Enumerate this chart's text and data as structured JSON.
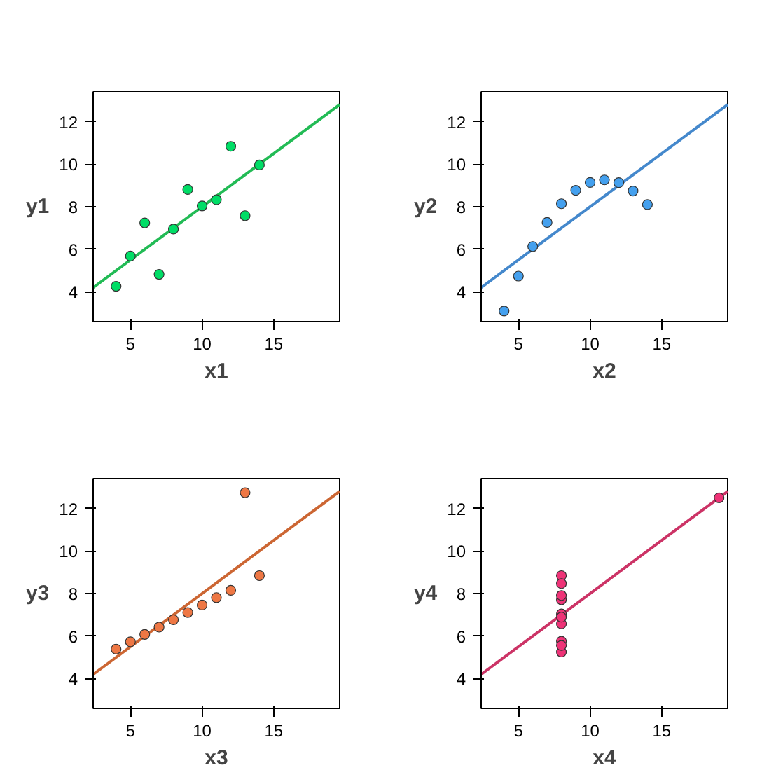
{
  "chart_data": [
    {
      "type": "scatter",
      "xlabel": "x1",
      "ylabel": "y1",
      "xlim": [
        2.4,
        19.6
      ],
      "ylim": [
        2.6,
        13.4
      ],
      "xticks": [
        5,
        10,
        15
      ],
      "yticks": [
        4,
        6,
        8,
        10,
        12
      ],
      "grid": false,
      "x": [
        10,
        8,
        13,
        9,
        11,
        14,
        6,
        4,
        12,
        7,
        5
      ],
      "series": [
        {
          "color": "#00dd66",
          "marker": "circle",
          "values": [
            8.04,
            6.95,
            7.58,
            8.81,
            8.33,
            9.96,
            7.24,
            4.26,
            10.84,
            4.82,
            5.68
          ]
        },
        {
          "type": "line",
          "color": "#22bb55",
          "x": [
            2.4,
            11,
            19.6
          ],
          "values": [
            4.2,
            8.5,
            12.8
          ]
        }
      ]
    },
    {
      "type": "scatter",
      "xlabel": "x2",
      "ylabel": "y2",
      "xlim": [
        2.4,
        19.6
      ],
      "ylim": [
        2.6,
        13.4
      ],
      "xticks": [
        5,
        10,
        15
      ],
      "yticks": [
        4,
        6,
        8,
        10,
        12
      ],
      "grid": false,
      "x": [
        10,
        8,
        13,
        9,
        11,
        14,
        6,
        4,
        12,
        7,
        5
      ],
      "series": [
        {
          "color": "#44a0ee",
          "marker": "circle",
          "values": [
            9.14,
            8.14,
            8.74,
            8.77,
            9.26,
            8.1,
            6.13,
            3.1,
            9.13,
            7.26,
            4.74
          ]
        },
        {
          "type": "line",
          "color": "#4488cc",
          "x": [
            2.4,
            11,
            19.6
          ],
          "values": [
            4.2,
            8.5,
            12.8
          ]
        }
      ]
    },
    {
      "type": "scatter",
      "xlabel": "x3",
      "ylabel": "y3",
      "xlim": [
        2.4,
        19.6
      ],
      "ylim": [
        2.6,
        13.4
      ],
      "xticks": [
        5,
        10,
        15
      ],
      "yticks": [
        4,
        6,
        8,
        10,
        12
      ],
      "grid": false,
      "x": [
        10,
        8,
        13,
        9,
        11,
        14,
        6,
        4,
        12,
        7,
        5
      ],
      "series": [
        {
          "color": "#ee7744",
          "marker": "circle",
          "values": [
            7.46,
            6.77,
            12.74,
            7.11,
            7.81,
            8.84,
            6.08,
            5.39,
            8.15,
            6.42,
            5.73
          ]
        },
        {
          "type": "line",
          "color": "#cc6633",
          "x": [
            2.4,
            11,
            19.6
          ],
          "values": [
            4.2,
            8.5,
            12.8
          ]
        }
      ]
    },
    {
      "type": "scatter",
      "xlabel": "x4",
      "ylabel": "y4",
      "xlim": [
        2.4,
        19.6
      ],
      "ylim": [
        2.6,
        13.4
      ],
      "xticks": [
        5,
        10,
        15
      ],
      "yticks": [
        4,
        6,
        8,
        10,
        12
      ],
      "grid": false,
      "x": [
        8,
        8,
        8,
        8,
        8,
        8,
        8,
        19,
        8,
        8,
        8
      ],
      "series": [
        {
          "color": "#ee3377",
          "marker": "circle",
          "values": [
            6.58,
            5.76,
            7.71,
            8.84,
            8.47,
            7.04,
            5.25,
            12.5,
            5.56,
            7.91,
            6.89
          ]
        },
        {
          "type": "line",
          "color": "#cc3366",
          "x": [
            2.4,
            11,
            19.6
          ],
          "values": [
            4.2,
            8.5,
            12.8
          ]
        }
      ]
    }
  ]
}
